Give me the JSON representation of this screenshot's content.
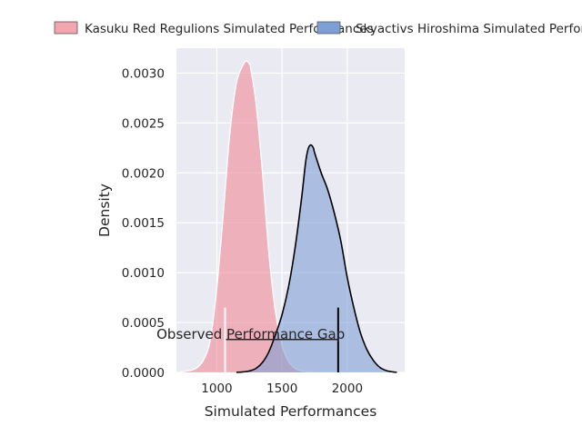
{
  "chart_data": {
    "type": "area",
    "title": "",
    "xlabel": "Simulated Performances",
    "ylabel": "Density",
    "xlim": [
      690,
      2440
    ],
    "ylim": [
      0,
      0.00325
    ],
    "x_ticks": [
      1000,
      1500,
      2000
    ],
    "x_tick_labels": [
      "1000",
      "1500",
      "2000"
    ],
    "y_ticks": [
      0,
      0.0005,
      0.001,
      0.0015,
      0.002,
      0.0025,
      0.003
    ],
    "y_tick_labels": [
      "0.0000",
      "0.0005",
      "0.0010",
      "0.0015",
      "0.0020",
      "0.0025",
      "0.0030"
    ],
    "grid": true,
    "legend_placement": "top, outside",
    "series": [
      {
        "name": "Kasuku Red Regulions Simulated Performances",
        "fill": "#f08a98",
        "edge": "#ffffff",
        "x": [
          720,
          800,
          850,
          900,
          950,
          1000,
          1050,
          1100,
          1150,
          1200,
          1225,
          1240,
          1250,
          1260,
          1300,
          1350,
          1400,
          1450,
          1500,
          1550,
          1600,
          1650,
          1700,
          1750
        ],
        "y": [
          5e-06,
          2e-05,
          5e-05,
          0.00013,
          0.00033,
          0.00085,
          0.0016,
          0.0024,
          0.0029,
          0.00308,
          0.00312,
          0.00311,
          0.00309,
          0.00304,
          0.0027,
          0.002,
          0.00118,
          0.0006,
          0.00027,
          0.00011,
          4e-05,
          1.5e-05,
          5e-06,
          1e-06
        ]
      },
      {
        "name": "Skyactivs Hiroshima Simulated Performances",
        "fill": "#7e9fd6",
        "edge": "#000000",
        "x": [
          1150,
          1200,
          1250,
          1300,
          1350,
          1400,
          1450,
          1500,
          1550,
          1600,
          1650,
          1680,
          1700,
          1720,
          1740,
          1750,
          1800,
          1850,
          1900,
          1950,
          2000,
          2050,
          2100,
          2150,
          2200,
          2250,
          2300,
          2350,
          2380
        ],
        "y": [
          1e-06,
          5e-06,
          1.5e-05,
          4e-05,
          0.0001,
          0.00021,
          0.00038,
          0.00058,
          0.00086,
          0.00125,
          0.00175,
          0.0021,
          0.00224,
          0.00228,
          0.00225,
          0.0022,
          0.002,
          0.00183,
          0.0016,
          0.00132,
          0.00095,
          0.00065,
          0.0004,
          0.00023,
          0.00012,
          5e-05,
          1.8e-05,
          5e-06,
          1e-06
        ]
      }
    ],
    "annotation": {
      "text": "Observed Performance Gap",
      "x_start": 1063,
      "x_end": 1930,
      "y_line": 0.00033,
      "marker_top": 0.00065,
      "left_marker_color": "#ffffff",
      "right_marker_color": "#000000"
    }
  }
}
